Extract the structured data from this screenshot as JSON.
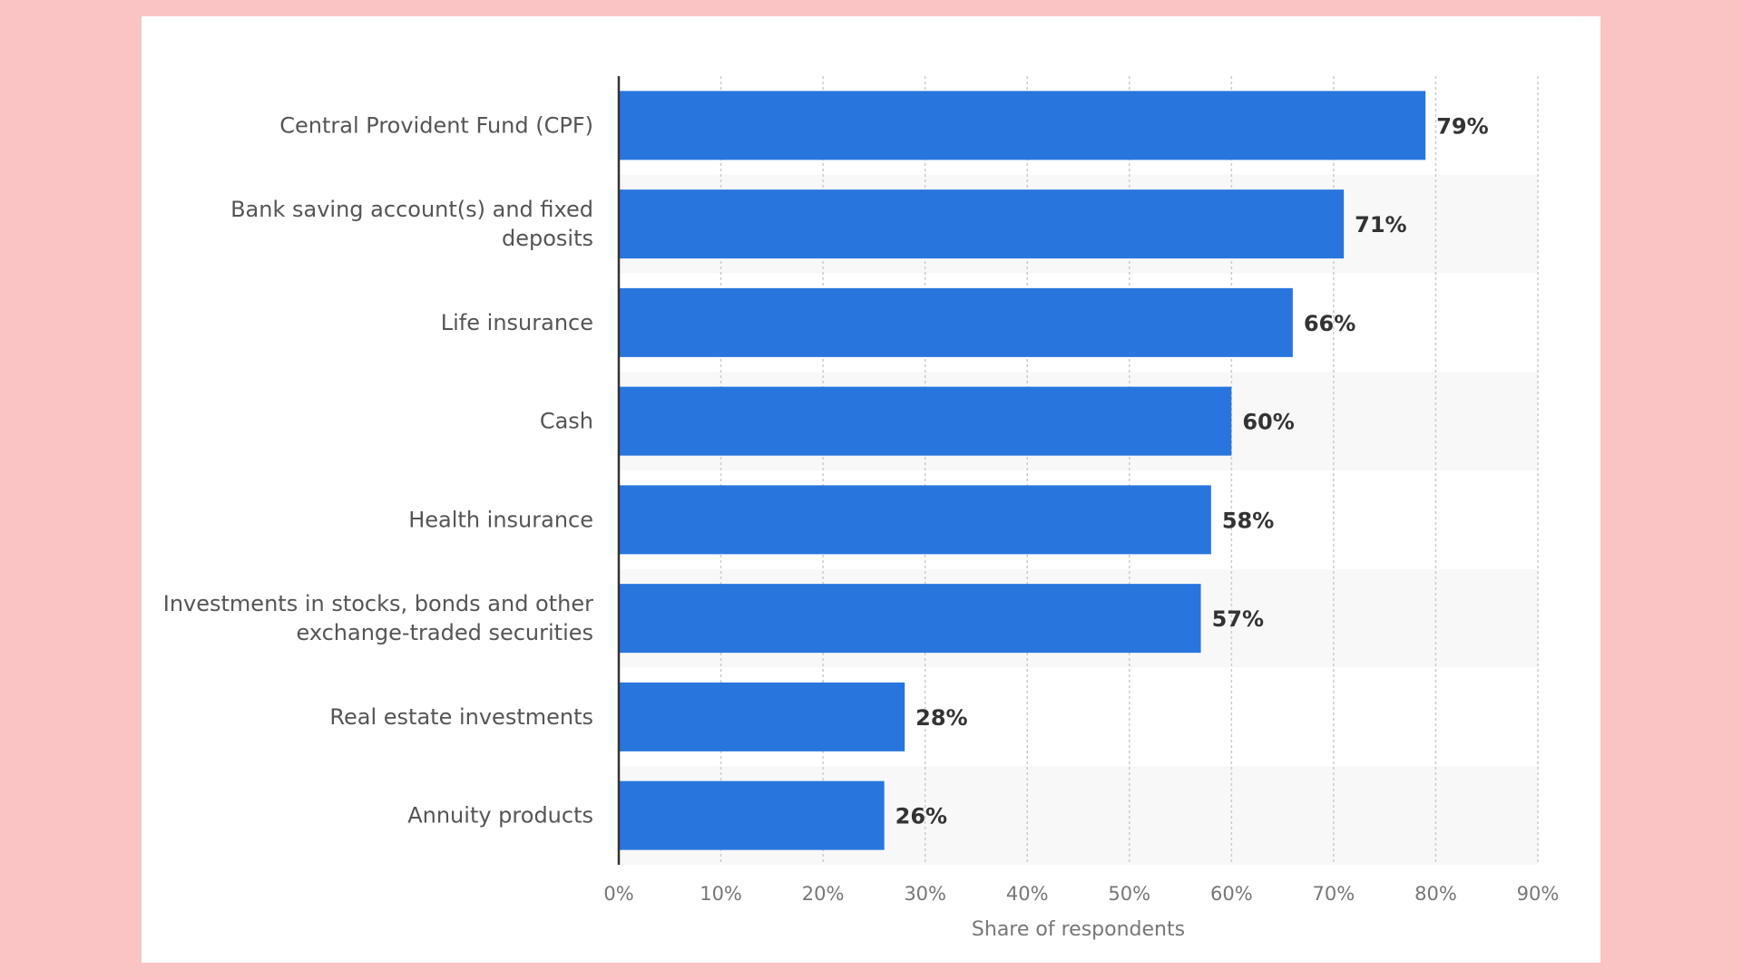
{
  "chart_data": {
    "type": "bar",
    "orientation": "horizontal",
    "categories": [
      "Central Provident Fund (CPF)",
      "Bank saving account(s) and fixed deposits",
      "Life insurance",
      "Cash",
      "Health insurance",
      "Investments in stocks, bonds and other exchange-traded securities",
      "Real estate investments",
      "Annuity products"
    ],
    "category_lines": [
      [
        "Central Provident Fund (CPF)"
      ],
      [
        "Bank saving account(s) and fixed",
        "deposits"
      ],
      [
        "Life insurance"
      ],
      [
        "Cash"
      ],
      [
        "Health insurance"
      ],
      [
        "Investments in stocks, bonds and other",
        "exchange-traded securities"
      ],
      [
        "Real estate investments"
      ],
      [
        "Annuity products"
      ]
    ],
    "values": [
      79,
      71,
      66,
      60,
      58,
      57,
      28,
      26
    ],
    "value_labels": [
      "79%",
      "71%",
      "66%",
      "60%",
      "58%",
      "57%",
      "28%",
      "26%"
    ],
    "xlabel": "Share of respondents",
    "ylabel": "",
    "xlim": [
      0,
      90
    ],
    "ticks": [
      "0%",
      "10%",
      "20%",
      "30%",
      "40%",
      "50%",
      "60%",
      "70%",
      "80%",
      "90%"
    ],
    "grid": true,
    "legend": "none",
    "colors": {
      "bar": "#2876dd",
      "background": "#fbc4c4",
      "card": "#ffffff",
      "band": "#f8f8f8",
      "grid": "#cccccc",
      "axis": "#333333"
    }
  }
}
